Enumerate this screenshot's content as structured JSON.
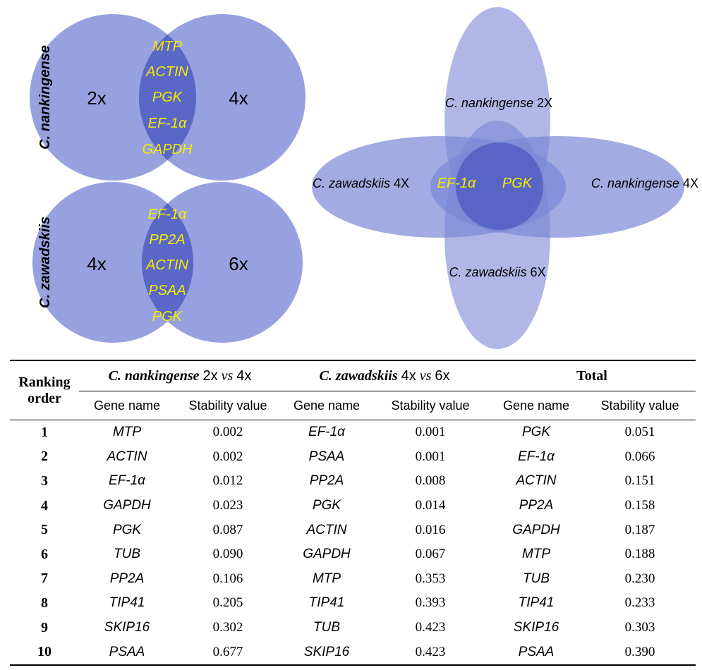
{
  "venn_top": {
    "side_label": "C. nankingense",
    "left_label": "2x",
    "right_label": "4x",
    "shared": [
      "MTP",
      "ACTIN",
      "PGK",
      "EF-1α",
      "GAPDH"
    ]
  },
  "venn_bottom": {
    "side_label": "C. zawadskiis",
    "left_label": "4x",
    "right_label": "6x",
    "shared": [
      "EF-1α",
      "PP2A",
      "ACTIN",
      "PSAA",
      "PGK"
    ]
  },
  "venn_cross": {
    "top_label": "C. nankingense",
    "top_suffix": "2X",
    "left_label": "C. zawadskiis",
    "left_suffix": "4X",
    "right_label": "C. nankingense",
    "right_suffix": "4X",
    "bottom_label": "C. zawadskiis",
    "bottom_suffix": "6X",
    "shared": [
      "EF-1α",
      "PGK"
    ]
  },
  "colors": {
    "circle_fill": "#7b87d6",
    "overlap_fill": "#3a48b8",
    "gene_text": "#f2ee00"
  },
  "table": {
    "rank_header": "Ranking order",
    "groups": [
      {
        "species": "C. nankingense",
        "a": "2x",
        "vs": "vs",
        "b": "4x"
      },
      {
        "species": "C. zawadskiis",
        "a": "4x",
        "vs": "vs",
        "b": "6x"
      },
      {
        "species": "",
        "a": "",
        "vs": "",
        "b": "",
        "title": "Total"
      }
    ],
    "sub_gene": "Gene name",
    "sub_value": "Stability value",
    "rows": [
      {
        "rank": "1",
        "g1": "MTP",
        "v1": "0.002",
        "g2": "EF-1α",
        "v2": "0.001",
        "g3": "PGK",
        "v3": "0.051"
      },
      {
        "rank": "2",
        "g1": "ACTIN",
        "v1": "0.002",
        "g2": "PSAA",
        "v2": "0.001",
        "g3": "EF-1α",
        "v3": "0.066"
      },
      {
        "rank": "3",
        "g1": "EF-1α",
        "v1": "0.012",
        "g2": "PP2A",
        "v2": "0.008",
        "g3": "ACTIN",
        "v3": "0.151"
      },
      {
        "rank": "4",
        "g1": "GAPDH",
        "v1": "0.023",
        "g2": "PGK",
        "v2": "0.014",
        "g3": "PP2A",
        "v3": "0.158"
      },
      {
        "rank": "5",
        "g1": "PGK",
        "v1": "0.087",
        "g2": "ACTIN",
        "v2": "0.016",
        "g3": "GAPDH",
        "v3": "0.187"
      },
      {
        "rank": "6",
        "g1": "TUB",
        "v1": "0.090",
        "g2": "GAPDH",
        "v2": "0.067",
        "g3": "MTP",
        "v3": "0.188"
      },
      {
        "rank": "7",
        "g1": "PP2A",
        "v1": "0.106",
        "g2": "MTP",
        "v2": "0.353",
        "g3": "TUB",
        "v3": "0.230"
      },
      {
        "rank": "8",
        "g1": "TIP41",
        "v1": "0.205",
        "g2": "TIP41",
        "v2": "0.393",
        "g3": "TIP41",
        "v3": "0.233"
      },
      {
        "rank": "9",
        "g1": "SKIP16",
        "v1": "0.302",
        "g2": "TUB",
        "v2": "0.423",
        "g3": "SKIP16",
        "v3": "0.303"
      },
      {
        "rank": "10",
        "g1": "PSAA",
        "v1": "0.677",
        "g2": "SKIP16",
        "v2": "0.423",
        "g3": "PSAA",
        "v3": "0.390"
      }
    ]
  }
}
